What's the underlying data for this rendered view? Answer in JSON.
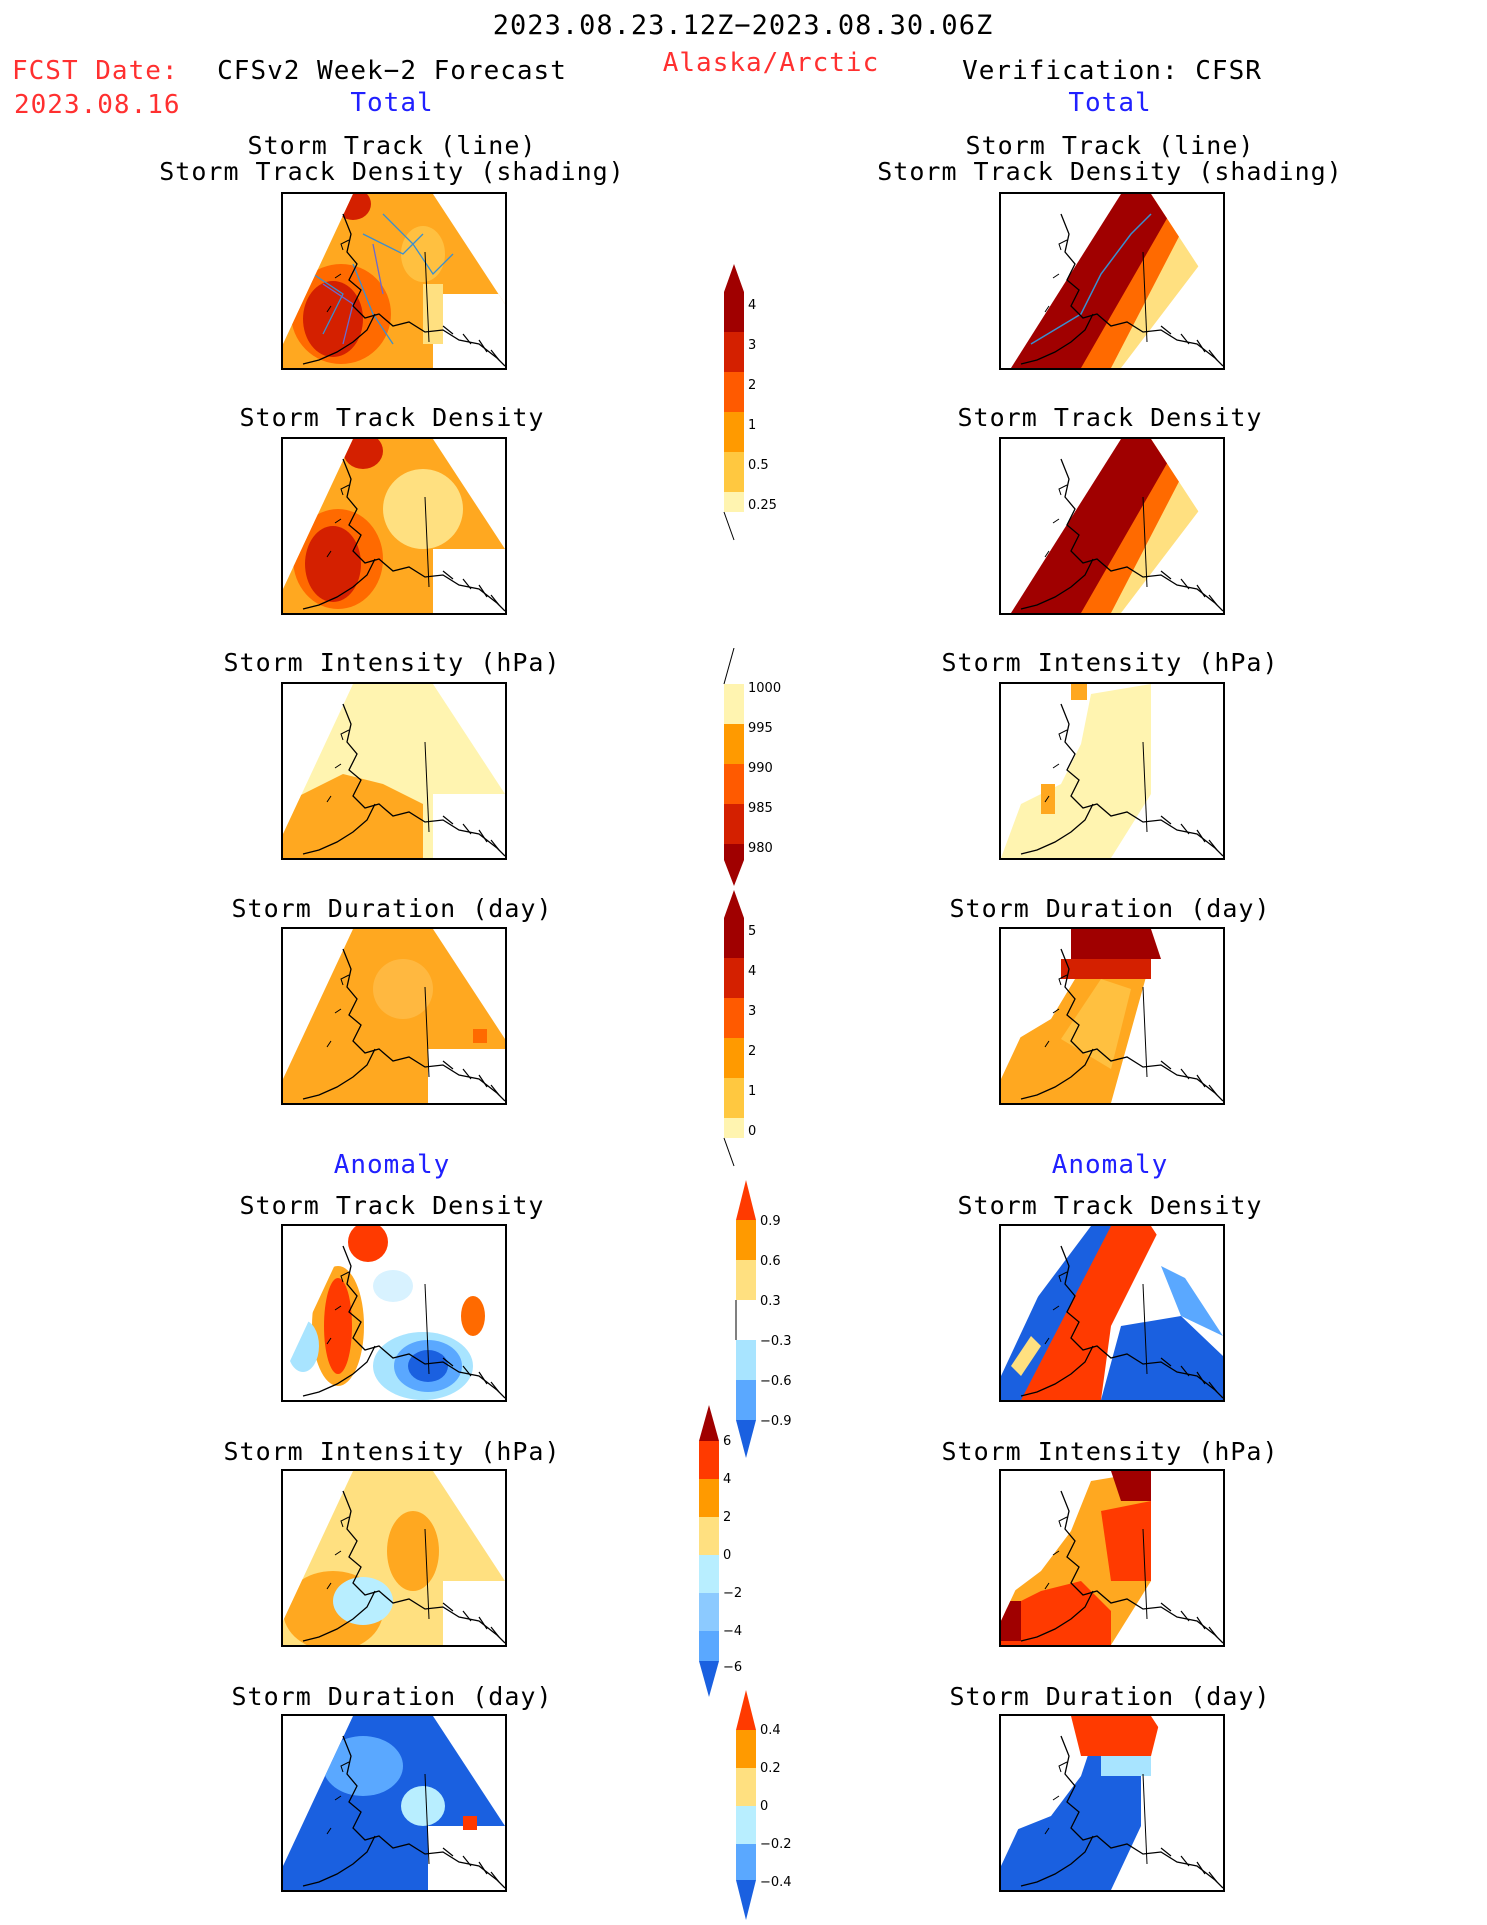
{
  "header": {
    "date_range": "2023.08.23.12Z−2023.08.30.06Z",
    "fcst_label": "FCST Date:",
    "fcst_date": "2023.08.16",
    "left_title": "CFSv2 Week−2 Forecast",
    "region": "Alaska/Arctic",
    "right_title": "Verification: CFSR",
    "left_total": "Total",
    "right_total": "Total"
  },
  "sections": {
    "anomaly_left": "Anomaly",
    "anomaly_right": "Anomaly"
  },
  "panels": {
    "left": [
      {
        "title1": "Storm Track (line)",
        "title2": "Storm Track Density (shading)"
      },
      {
        "title1": "Storm Track Density"
      },
      {
        "title1": "Storm Intensity (hPa)"
      },
      {
        "title1": "Storm Duration (day)"
      },
      {
        "title1": "Storm Track Density"
      },
      {
        "title1": "Storm Intensity (hPa)"
      },
      {
        "title1": "Storm Duration (day)"
      }
    ],
    "right": [
      {
        "title1": "Storm Track (line)",
        "title2": "Storm Track Density (shading)"
      },
      {
        "title1": "Storm Track Density"
      },
      {
        "title1": "Storm Intensity (hPa)"
      },
      {
        "title1": "Storm Duration (day)"
      },
      {
        "title1": "Storm Track Density"
      },
      {
        "title1": "Storm Intensity (hPa)"
      },
      {
        "title1": "Storm Duration (day)"
      }
    ]
  },
  "colorbars": [
    {
      "labels": [
        "4",
        "3",
        "2",
        "1",
        "0.5",
        "0.25"
      ],
      "colors": [
        "#a00000",
        "#d42000",
        "#ff5a00",
        "#ff9a00",
        "#ffc840",
        "#fff4b0"
      ]
    },
    {
      "labels": [
        "1000",
        "995",
        "990",
        "985",
        "980"
      ],
      "colors": [
        "#fff4b0",
        "#ff9a00",
        "#ff5a00",
        "#d42000",
        "#a00000"
      ]
    },
    {
      "labels": [
        "5",
        "4",
        "3",
        "2",
        "1",
        "0"
      ],
      "colors": [
        "#a00000",
        "#d42000",
        "#ff5a00",
        "#ff9a00",
        "#ffc840",
        "#fff4b0"
      ]
    },
    {
      "labels": [
        "0.9",
        "0.6",
        "0.3",
        "−0.3",
        "−0.6",
        "−0.9"
      ],
      "colors": [
        "#ff3a00",
        "#ff9a00",
        "#ffe080",
        "#ffffff",
        "#a8e4ff",
        "#5aa8ff",
        "#1a60e0"
      ]
    },
    {
      "labels": [
        "6",
        "4",
        "2",
        "0",
        "−2",
        "−4",
        "−6"
      ],
      "colors": [
        "#a00000",
        "#ff3a00",
        "#ff9a00",
        "#ffe080",
        "#b8eeff",
        "#8ccaff",
        "#5aa8ff",
        "#1a60e0"
      ]
    },
    {
      "labels": [
        "0.4",
        "0.2",
        "0",
        "−0.2",
        "−0.4"
      ],
      "colors": [
        "#ff3a00",
        "#ff9a00",
        "#ffe080",
        "#b8eeff",
        "#5aa8ff",
        "#1a60e0"
      ]
    }
  ]
}
